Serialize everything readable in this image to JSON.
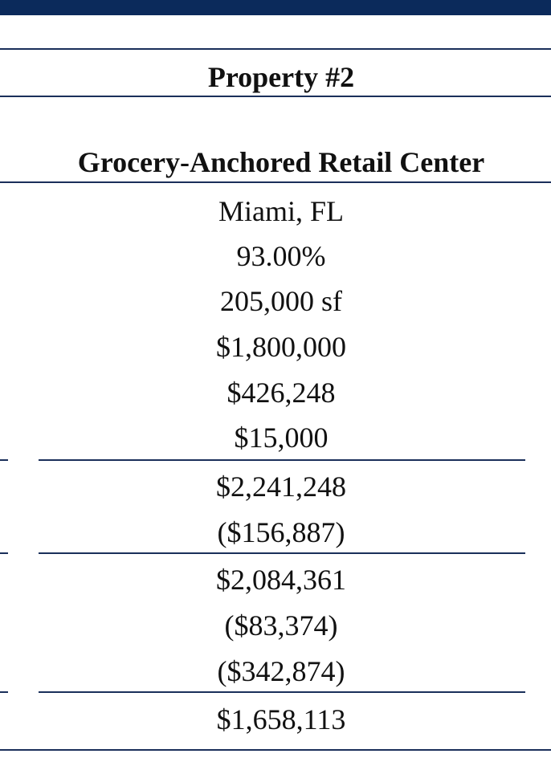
{
  "header": {
    "property_label": "Property #2",
    "property_type": "Grocery-Anchored Retail Center"
  },
  "values": {
    "location": "Miami, FL",
    "occupancy": "93.00%",
    "size": "205,000 sf",
    "v1": "$1,800,000",
    "v2": "$426,248",
    "v3": "$15,000",
    "subtotal_1": "$2,241,248",
    "deduction_1": "($156,887)",
    "subtotal_2": "$2,084,361",
    "deduction_2": "($83,374)",
    "deduction_3": "($342,874)",
    "total": "$1,658,113"
  }
}
